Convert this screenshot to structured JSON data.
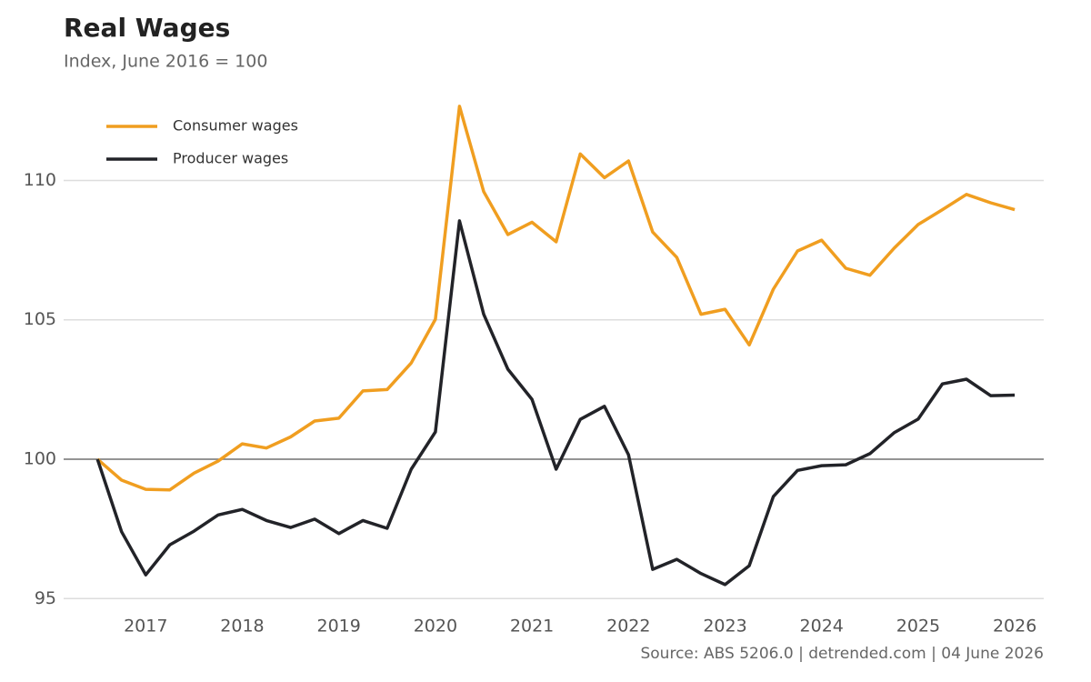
{
  "chart_data": {
    "type": "line",
    "title": "Real Wages",
    "subtitle": "Index, June 2016 = 100",
    "source": "Source: ABS 5206.0 | detrended.com | 04 June 2026",
    "x": [
      2016.5,
      2016.75,
      2017,
      2017.25,
      2017.5,
      2017.75,
      2018,
      2018.25,
      2018.5,
      2018.75,
      2019,
      2019.25,
      2019.5,
      2019.75,
      2020,
      2020.25,
      2020.5,
      2020.75,
      2021,
      2021.25,
      2021.5,
      2021.75,
      2022,
      2022.25,
      2022.5,
      2022.75,
      2023,
      2023.25,
      2023.5,
      2023.75,
      2024,
      2024.25,
      2024.5,
      2024.75,
      2025,
      2025.25,
      2025.5,
      2025.75,
      2026
    ],
    "series": [
      {
        "name": "Consumer wages",
        "color": "#f09e20",
        "values": [
          100,
          99.25,
          98.92,
          98.9,
          99.5,
          99.93,
          100.55,
          100.4,
          100.8,
          101.37,
          101.47,
          102.45,
          102.5,
          103.45,
          105.02,
          112.66,
          109.6,
          108.06,
          108.5,
          107.8,
          110.95,
          110.1,
          110.7,
          108.15,
          107.24,
          105.2,
          105.38,
          104.1,
          106.1,
          107.47,
          107.86,
          106.85,
          106.6,
          107.57,
          108.42,
          108.95,
          109.5,
          109.2,
          108.95
        ]
      },
      {
        "name": "Producer wages",
        "color": "#222328",
        "values": [
          100,
          97.4,
          95.85,
          96.93,
          97.42,
          98.0,
          98.2,
          97.8,
          97.55,
          97.85,
          97.33,
          97.8,
          97.52,
          99.64,
          100.98,
          108.55,
          105.2,
          103.23,
          102.15,
          99.64,
          101.43,
          101.9,
          100.16,
          96.05,
          96.41,
          95.9,
          95.5,
          96.18,
          98.66,
          99.6,
          99.77,
          99.8,
          100.2,
          100.95,
          101.44,
          102.7,
          102.87,
          102.28,
          102.3
        ]
      }
    ],
    "xlim": [
      2016.15,
      2026.3
    ],
    "xticks": [
      2017,
      2018,
      2019,
      2020,
      2021,
      2022,
      2023,
      2024,
      2025,
      2026
    ],
    "ylim": [
      94.5,
      113
    ],
    "yticks": [
      95,
      100,
      105,
      110
    ],
    "grid": true,
    "baseline": 100,
    "legend": "top-left"
  }
}
